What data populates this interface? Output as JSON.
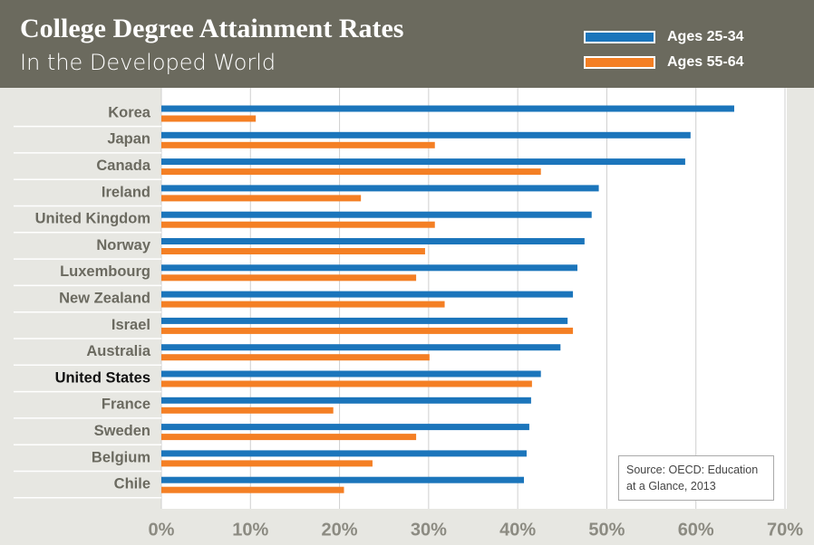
{
  "chart_data": {
    "type": "bar",
    "orientation": "horizontal",
    "title": "College Degree Attainment Rates",
    "subtitle": "In the Developed World",
    "annotation": "Source: OECD: Education at a Glance, 2013",
    "categories": [
      "Korea",
      "Japan",
      "Canada",
      "Ireland",
      "United Kingdom",
      "Norway",
      "Luxembourg",
      "New Zealand",
      "Israel",
      "Australia",
      "United States",
      "France",
      "Sweden",
      "Belgium",
      "Chile"
    ],
    "highlight_index": 10,
    "series": [
      {
        "name": "Ages 25-34",
        "color": "#1b75bb",
        "values": [
          64.3,
          59.4,
          58.8,
          49.1,
          48.3,
          47.5,
          46.7,
          46.2,
          45.6,
          44.8,
          42.6,
          41.5,
          41.3,
          41.0,
          40.7
        ]
      },
      {
        "name": "Ages 55-64",
        "color": "#f47f24",
        "values": [
          10.6,
          30.7,
          42.6,
          22.4,
          30.7,
          29.6,
          28.6,
          31.8,
          46.2,
          30.1,
          41.6,
          19.3,
          28.6,
          23.7,
          20.5
        ]
      }
    ],
    "xlim": [
      0,
      70
    ],
    "xticks": [
      {
        "value": 0,
        "label": "0%"
      },
      {
        "value": 10,
        "label": "10%"
      },
      {
        "value": 20,
        "label": "20%"
      },
      {
        "value": 30,
        "label": "30%"
      },
      {
        "value": 40,
        "label": "40%"
      },
      {
        "value": 50,
        "label": "50%"
      },
      {
        "value": 60,
        "label": "60%"
      },
      {
        "value": 70,
        "label": "70%"
      }
    ],
    "grid": true
  }
}
